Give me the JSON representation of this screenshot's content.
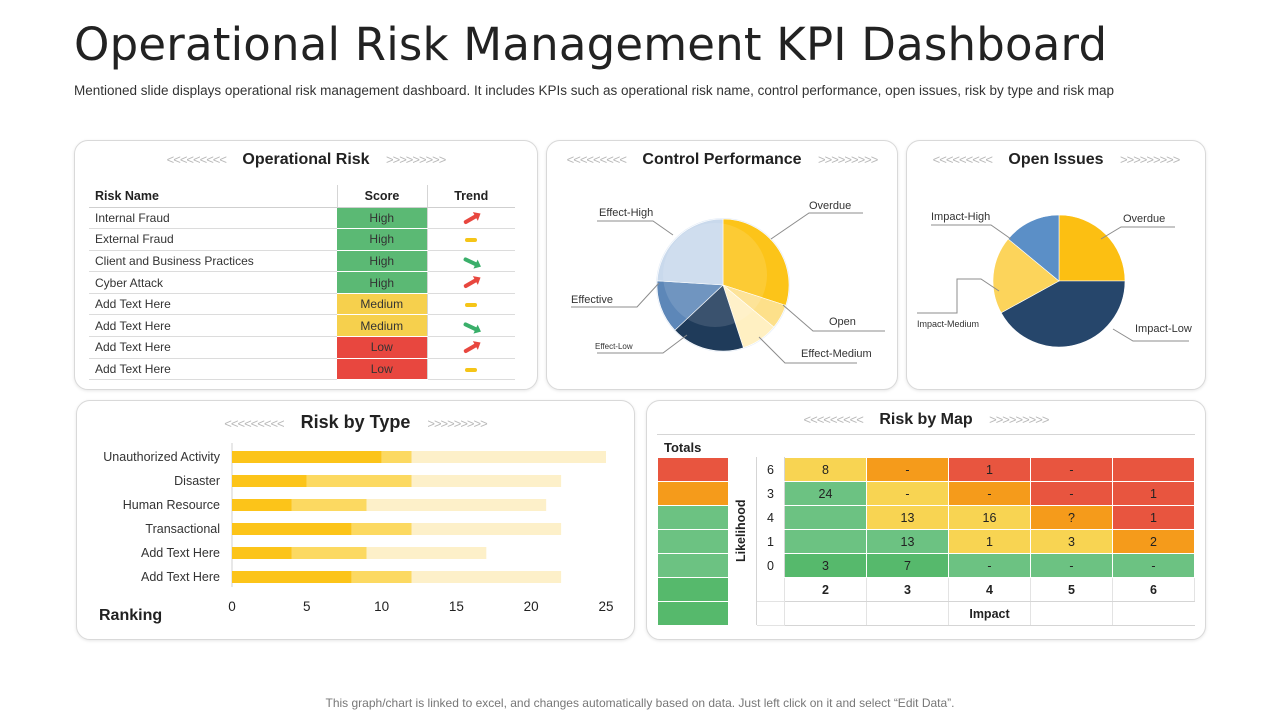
{
  "header": {
    "title": "Operational Risk Management KPI Dashboard",
    "subtitle": "Mentioned slide displays operational risk management dashboard. It includes KPIs such as operational risk name, control performance, open issues, risk by type and risk map"
  },
  "footer": "This graph/chart is linked to excel, and changes automatically based on data. Just left click on it and select “Edit Data”.",
  "chevrons": {
    "left": "<<<<<<<<<",
    "right": ">>>>>>>>>"
  },
  "colors": {
    "high": "#5bb974",
    "medium": "#f6d04d",
    "low": "#e8473f",
    "up": "#e8473f",
    "down": "#3aaf6a",
    "flat": "#f5c518"
  },
  "operational_risk": {
    "title": "Operational Risk",
    "columns": [
      "Risk Name",
      "Score",
      "Trend"
    ],
    "rows": [
      {
        "name": "Internal Fraud",
        "score": "High",
        "trend": "up"
      },
      {
        "name": "External Fraud",
        "score": "High",
        "trend": "flat"
      },
      {
        "name": "Client and Business Practices",
        "score": "High",
        "trend": "down"
      },
      {
        "name": "Cyber Attack",
        "score": "High",
        "trend": "up"
      },
      {
        "name": "Add Text Here",
        "score": "Medium",
        "trend": "flat"
      },
      {
        "name": "Add Text Here",
        "score": "Medium",
        "trend": "down"
      },
      {
        "name": "Add Text Here",
        "score": "Low",
        "trend": "up"
      },
      {
        "name": "Add Text Here",
        "score": "Low",
        "trend": "flat"
      }
    ]
  },
  "control_performance": {
    "title": "Control Performance"
  },
  "open_issues": {
    "title": "Open Issues"
  },
  "risk_by_type": {
    "title": "Risk by Type",
    "ranking_label": "Ranking"
  },
  "risk_by_map": {
    "title": "Risk by Map",
    "totals_label": "Totals",
    "likelihood_label": "Likelihood",
    "impact_label": "Impact",
    "impact_ticks": [
      "2",
      "3",
      "4",
      "5",
      "6"
    ],
    "rows": [
      {
        "likelihood": "6",
        "cells": [
          "8",
          "-",
          "1",
          "-",
          ""
        ],
        "colors": [
          "#f8d452",
          "#f59b1b",
          "#e8553f",
          "#e8553f",
          "#e8553f"
        ],
        "total_color": "#e8553f"
      },
      {
        "likelihood": "3",
        "cells": [
          "24",
          "-",
          "-",
          "-",
          "1"
        ],
        "colors": [
          "#6cc282",
          "#f8d452",
          "#f59b1b",
          "#e8553f",
          "#e8553f"
        ],
        "total_color": "#f59b1b"
      },
      {
        "likelihood": "4",
        "cells": [
          "",
          "13",
          "16",
          "?",
          "1"
        ],
        "colors": [
          "#6cc282",
          "#f8d452",
          "#f8d452",
          "#f59b1b",
          "#e8553f"
        ],
        "total_color": "#6cc282"
      },
      {
        "likelihood": "1",
        "cells": [
          "",
          "13",
          "1",
          "3",
          "2"
        ],
        "colors": [
          "#6cc282",
          "#6cc282",
          "#f8d452",
          "#f8d452",
          "#f59b1b"
        ],
        "total_color": "#6cc282"
      },
      {
        "likelihood": "0",
        "cells": [
          "3",
          "7",
          "-",
          "-",
          "-"
        ],
        "colors": [
          "#56b96c",
          "#56b96c",
          "#6cc282",
          "#6cc282",
          "#6cc282"
        ],
        "total_color": "#6cc282"
      }
    ],
    "extra_total_colors": [
      "#56b96c",
      "#56b96c"
    ]
  },
  "chart_data": [
    {
      "type": "pie",
      "title": "Control Performance",
      "slices": [
        {
          "label": "Overdue",
          "value": 30,
          "color": "#fcc419"
        },
        {
          "label": "Open",
          "value": 6,
          "color": "#fde08a"
        },
        {
          "label": "Effect-Medium",
          "value": 9,
          "color": "#fff0c2"
        },
        {
          "label": "Effect-Low",
          "value": 18,
          "color": "#1f3b5a"
        },
        {
          "label": "Effective",
          "value": 13,
          "color": "#5d87b8"
        },
        {
          "label": "Effect-High",
          "value": 24,
          "color": "#c9d9ec"
        }
      ]
    },
    {
      "type": "pie",
      "title": "Open Issues",
      "slices": [
        {
          "label": "Overdue",
          "value": 25,
          "color": "#fcbf12"
        },
        {
          "label": "Impact-Low",
          "value": 42,
          "color": "#26466b"
        },
        {
          "label": "Impact-Medium",
          "value": 19,
          "color": "#fcd45b"
        },
        {
          "label": "Impact-High",
          "value": 14,
          "color": "#5b8fc7"
        }
      ]
    },
    {
      "type": "bar",
      "title": "Risk by Type",
      "stacked": true,
      "orientation": "horizontal",
      "categories": [
        "Unauthorized Activity",
        "Disaster",
        "Human Resource",
        "Transactional",
        "Add Text Here",
        "Add Text Here"
      ],
      "series": [
        {
          "name": "Series 1",
          "values": [
            10,
            5,
            4,
            8,
            4,
            8
          ],
          "color": "#fcc419"
        },
        {
          "name": "Series 2",
          "values": [
            2,
            7,
            5,
            4,
            5,
            4
          ],
          "color": "#fcd961"
        },
        {
          "name": "Series 3",
          "values": [
            13,
            10,
            12,
            10,
            8,
            10
          ],
          "color": "#fdf0c9"
        }
      ],
      "xlim": [
        0,
        25
      ],
      "xticks": [
        "0",
        "5",
        "10",
        "15",
        "20",
        "25"
      ],
      "xlabel": "Ranking"
    }
  ]
}
